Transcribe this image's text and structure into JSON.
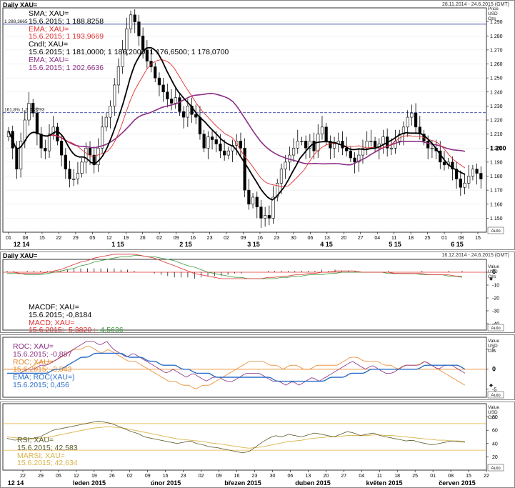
{
  "chart_data": [
    {
      "type": "candlestick",
      "title": "Daily XAU=",
      "date_range": "28.11.2014 - 24.6.2015 (GMT)",
      "axis_unit": [
        "Price",
        "USD",
        "Ozs"
      ],
      "auto_label": "Auto",
      "ylim": [
        1140,
        1300
      ],
      "y_ticks": [
        "1 150",
        "1 160",
        "1 170",
        "1 180",
        "1 190",
        "1 200",
        "1 210",
        "1 220",
        "1 230",
        "1 240",
        "1 250",
        "1 260",
        "1 270",
        "1 280",
        "1 290"
      ],
      "x_day_ticks": [
        "01",
        "08",
        "15",
        "22",
        "29",
        "05",
        "12",
        "19",
        "26",
        "02",
        "09",
        "16",
        "23",
        "02",
        "09",
        "16",
        "23",
        "30",
        "06",
        "13",
        "20",
        "27",
        "04",
        "11",
        "18",
        "25",
        "01",
        "08",
        "15"
      ],
      "x_month_ticks": [
        "12 14",
        "1 15",
        "2 15",
        "3 15",
        "4 15",
        "5 15",
        "6 15"
      ],
      "ref_lines": [
        {
          "label": "1 288,3665",
          "value": 1288.3665
        },
        {
          "label": "161,8% 1 225,2793",
          "value": 1225.2793
        }
      ],
      "legend": [
        {
          "name": "SMA; XAU=",
          "values": "15.6.2015; 1 188,8258",
          "color": "#000000"
        },
        {
          "name": "EMA; XAU=",
          "values": "15.6.2015; 1 193,9669",
          "color": "#e03030"
        },
        {
          "name": "Cndl; XAU=",
          "values": "15.6.2015; 1 181,0000; 1 186,2000; 1 176,6500; 1 178,0700",
          "color": "#000000"
        },
        {
          "name": "EMA; XAU=",
          "values": "15.6.2015; 1 202,6636",
          "color": "#8b2f86"
        }
      ],
      "last_value_label": "1 200",
      "close_series": [
        1212,
        1200,
        1185,
        1205,
        1220,
        1232,
        1225,
        1210,
        1200,
        1198,
        1210,
        1215,
        1205,
        1195,
        1185,
        1178,
        1178,
        1182,
        1190,
        1200,
        1195,
        1188,
        1200,
        1215,
        1222,
        1230,
        1245,
        1258,
        1270,
        1285,
        1295,
        1290,
        1280,
        1270,
        1262,
        1258,
        1250,
        1245,
        1240,
        1235,
        1232,
        1236,
        1226,
        1222,
        1230,
        1224,
        1222,
        1210,
        1200,
        1208,
        1206,
        1203,
        1198,
        1195,
        1198,
        1202,
        1205,
        1200,
        1170,
        1160,
        1165,
        1158,
        1150,
        1152,
        1150,
        1165,
        1175,
        1185,
        1190,
        1195,
        1200,
        1205,
        1205,
        1200,
        1205,
        1198,
        1210,
        1215,
        1205,
        1200,
        1203,
        1205,
        1200,
        1198,
        1193,
        1190,
        1195,
        1200,
        1205,
        1205,
        1200,
        1203,
        1208,
        1200,
        1200,
        1205,
        1210,
        1215,
        1222,
        1225,
        1215,
        1210,
        1205,
        1200,
        1200,
        1198,
        1190,
        1188,
        1190,
        1185,
        1178,
        1172,
        1175,
        1180,
        1185,
        1182,
        1178
      ]
    },
    {
      "type": "line",
      "title": "Daily XAU=",
      "date_range": "16.12.2014 - 24.6.2015 (GMT)",
      "axis_unit": [
        "Value",
        "USD",
        "Ozs"
      ],
      "auto_label": "Auto",
      "ylim": [
        -45,
        10
      ],
      "y_ticks": [
        "0",
        "-10",
        "-20",
        "-30",
        "-40"
      ],
      "legend": [
        {
          "name": "MACDF; XAU=",
          "values": "15.6.2015; -0,8184",
          "color": "#000000"
        },
        {
          "name": "MACD; XAU=",
          "values": "15.6.2015; -5,3820; -4,5636",
          "color": "#e03030"
        }
      ],
      "extra_value": "-4,5636",
      "macd": [
        0,
        0,
        -1,
        -1,
        -1,
        -1,
        0,
        1,
        2,
        4,
        6,
        8,
        9,
        11,
        12,
        13,
        14,
        14,
        14,
        14,
        13,
        12,
        11,
        9,
        7,
        5,
        3,
        1,
        -1,
        -2,
        -3,
        -4,
        -5,
        -5,
        -5,
        -5,
        -5,
        -5,
        -5,
        -4,
        -4,
        -3,
        -3,
        -2,
        -2,
        -1,
        -1,
        0,
        0,
        1,
        1,
        1,
        1,
        0,
        0,
        0,
        0,
        0,
        -1,
        -1,
        -1,
        -1,
        -1,
        -2,
        -2,
        -2,
        -2,
        -3,
        -3
      ],
      "signal": [
        -1,
        -1,
        -1,
        -2,
        -2,
        -2,
        -1,
        0,
        1,
        2,
        3,
        5,
        6,
        8,
        9,
        10,
        11,
        12,
        12,
        13,
        13,
        12,
        12,
        11,
        10,
        9,
        7,
        5,
        4,
        2,
        0,
        -1,
        -2,
        -3,
        -4,
        -4,
        -5,
        -5,
        -5,
        -5,
        -5,
        -4,
        -4,
        -3,
        -3,
        -2,
        -2,
        -2,
        -1,
        -1,
        0,
        0,
        0,
        0,
        0,
        0,
        0,
        -1,
        -1,
        -1,
        -1,
        -1,
        -2,
        -2,
        -2,
        -2,
        -3,
        -3,
        -4
      ],
      "histogram": [
        1,
        1,
        0,
        1,
        1,
        1,
        1,
        1,
        1,
        2,
        3,
        3,
        3,
        3,
        3,
        3,
        3,
        2,
        2,
        1,
        0,
        0,
        -1,
        -2,
        -3,
        -4,
        -4,
        -4,
        -5,
        -4,
        -3,
        -3,
        -3,
        -2,
        -1,
        -1,
        0,
        0,
        0,
        1,
        1,
        1,
        1,
        1,
        1,
        1,
        1,
        2,
        1,
        2,
        1,
        1,
        1,
        0,
        0,
        0,
        0,
        1,
        0,
        0,
        0,
        0,
        1,
        0,
        0,
        0,
        1,
        0,
        1
      ]
    },
    {
      "type": "line",
      "axis_unit": [
        "Value",
        "USD",
        "Ozs"
      ],
      "auto_label": "Auto",
      "ylim": [
        -7,
        8
      ],
      "y_ticks": [
        "5",
        "0",
        "-5"
      ],
      "ref_line": 0,
      "legend": [
        {
          "name": "ROC; XAU=",
          "values": "15.6.2015; -0,887",
          "color": "#8b2f86"
        },
        {
          "name": "ROC; XAU=",
          "values": "15.6.2015; -3,843",
          "color": "#e8892a"
        },
        {
          "name": "EMA; ROC(XAU=)",
          "values": "15.6.2015; 0,456",
          "color": "#2a6fc9"
        }
      ],
      "roc": [
        -1,
        -1,
        -1,
        0,
        0,
        1,
        1,
        2,
        3,
        4,
        5,
        6,
        7,
        7,
        6,
        7,
        5,
        4,
        3,
        4,
        3,
        2,
        1,
        0,
        -1,
        0,
        -1,
        -2,
        -1,
        -2,
        -3,
        -2,
        -2,
        -3,
        -3,
        -2,
        -1,
        -1,
        -1,
        -2,
        -3,
        -3,
        -4,
        -3,
        -4,
        -3,
        -2,
        -3,
        -2,
        -1,
        0,
        1,
        2,
        1,
        0,
        1,
        0,
        -1,
        -1,
        0,
        1,
        1,
        1,
        2,
        1,
        0,
        1,
        1,
        0,
        -1
      ],
      "roc2": [
        0,
        0,
        0,
        0,
        1,
        2,
        2,
        2,
        3,
        4,
        5,
        5,
        6,
        5,
        4,
        5,
        4,
        3,
        2,
        2,
        1,
        0,
        -1,
        -2,
        -3,
        -3,
        -4,
        -4,
        -5,
        -4,
        -4,
        -3,
        -2,
        -1,
        0,
        1,
        2,
        2,
        2,
        1,
        1,
        0,
        1,
        1,
        0,
        0,
        1,
        1,
        1,
        1,
        2,
        3,
        3,
        2,
        2,
        2,
        1,
        1,
        0,
        1,
        1,
        1,
        2,
        1,
        0,
        -1,
        -2,
        -3,
        -4
      ],
      "roc_ema": [
        -1,
        -1,
        -1,
        -1,
        -1,
        -1,
        -1,
        0,
        0,
        1,
        2,
        3,
        3,
        4,
        4,
        4,
        4,
        4,
        3,
        3,
        3,
        2,
        2,
        1,
        1,
        1,
        0,
        0,
        -1,
        -1,
        -1,
        -2,
        -2,
        -2,
        -2,
        -2,
        -2,
        -2,
        -2,
        -2,
        -3,
        -3,
        -3,
        -3,
        -3,
        -3,
        -3,
        -3,
        -2,
        -2,
        -2,
        -1,
        -1,
        -1,
        0,
        0,
        0,
        0,
        0,
        0,
        0,
        0,
        1,
        1,
        1,
        1,
        1,
        1,
        0
      ]
    },
    {
      "type": "line",
      "axis_unit": [
        "Value",
        "USD",
        "Ozs"
      ],
      "auto_label": "Auto",
      "ylim": [
        0,
        100
      ],
      "y_ticks": [
        "80",
        "60",
        "40",
        "20"
      ],
      "ref_lines": [
        70,
        30
      ],
      "legend": [
        {
          "name": "RSI; XAU=",
          "values": "15.6.2015; 42,583",
          "color": "#5a5a2a"
        },
        {
          "name": "MARSI; XAU=",
          "values": "15.6.2015; 42,634",
          "color": "#d8b44a"
        }
      ],
      "x_day_ticks": [
        "22",
        "29",
        "05",
        "12",
        "19",
        "26",
        "02",
        "09",
        "16",
        "23",
        "02",
        "09",
        "16",
        "23",
        "30",
        "06",
        "13",
        "20",
        "27",
        "04",
        "11",
        "18",
        "25",
        "01",
        "08",
        "15",
        "22"
      ],
      "x_month_ticks": [
        "12 14",
        "leden 2015",
        "únor 2015",
        "březen 2015",
        "duben 2015",
        "květen 2015",
        "červen 2015"
      ],
      "rsi": [
        48,
        45,
        46,
        47,
        48,
        50,
        55,
        60,
        62,
        64,
        66,
        68,
        70,
        72,
        74,
        72,
        70,
        66,
        62,
        58,
        55,
        50,
        48,
        46,
        44,
        42,
        40,
        42,
        44,
        40,
        38,
        35,
        34,
        32,
        30,
        28,
        26,
        28,
        35,
        42,
        48,
        52,
        50,
        54,
        52,
        50,
        53,
        56,
        54,
        52,
        50,
        54,
        58,
        56,
        52,
        54,
        56,
        52,
        50,
        48,
        46,
        44,
        45,
        42,
        40,
        38,
        40,
        42,
        44,
        43,
        42
      ],
      "marsi": [
        50,
        49,
        48,
        47,
        47,
        48,
        49,
        51,
        53,
        55,
        57,
        59,
        61,
        63,
        64,
        65,
        65,
        64,
        63,
        61,
        59,
        57,
        55,
        53,
        51,
        49,
        47,
        46,
        45,
        44,
        43,
        41,
        40,
        39,
        37,
        36,
        34,
        33,
        34,
        35,
        37,
        39,
        41,
        43,
        44,
        45,
        47,
        48,
        49,
        50,
        50,
        51,
        52,
        52,
        52,
        52,
        53,
        53,
        52,
        52,
        51,
        50,
        49,
        48,
        47,
        46,
        45,
        45,
        44,
        44,
        43
      ]
    }
  ]
}
